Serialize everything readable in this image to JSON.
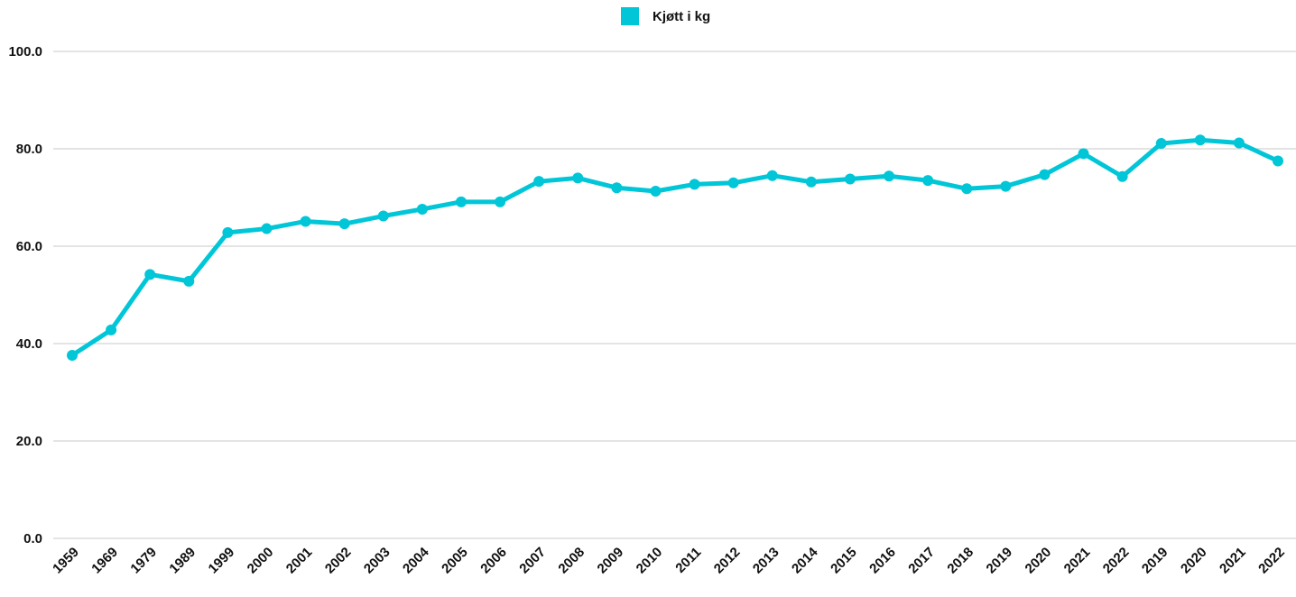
{
  "chart_data": {
    "type": "line",
    "categories": [
      "1959",
      "1969",
      "1979",
      "1989",
      "1999",
      "2000",
      "2001",
      "2002",
      "2003",
      "2004",
      "2005",
      "2006",
      "2007",
      "2008",
      "2009",
      "2010",
      "2011",
      "2012",
      "2013",
      "2014",
      "2015",
      "2016",
      "2017",
      "2018",
      "2019",
      "2020",
      "2021",
      "2022",
      "2019",
      "2020",
      "2021",
      "2022"
    ],
    "series": [
      {
        "name": "Kjøtt i kg",
        "color": "#00c6d7",
        "values": [
          37.6,
          42.8,
          54.2,
          52.8,
          62.8,
          63.6,
          65.1,
          64.6,
          66.2,
          67.6,
          69.1,
          69.1,
          73.3,
          74.0,
          72.0,
          71.3,
          72.7,
          73.0,
          74.5,
          73.2,
          73.8,
          74.4,
          73.5,
          71.8,
          72.3,
          74.7,
          79.0,
          74.3,
          81.1,
          81.8,
          81.2,
          77.5
        ]
      }
    ],
    "ylim": [
      0,
      100
    ],
    "yticks": [
      "0.0",
      "20.0",
      "40.0",
      "60.0",
      "80.0",
      "100.0"
    ],
    "ytick_values": [
      0,
      20,
      40,
      60,
      80,
      100
    ],
    "grid": true,
    "legend_position": "top-center",
    "title": "",
    "xlabel": "",
    "ylabel": ""
  }
}
